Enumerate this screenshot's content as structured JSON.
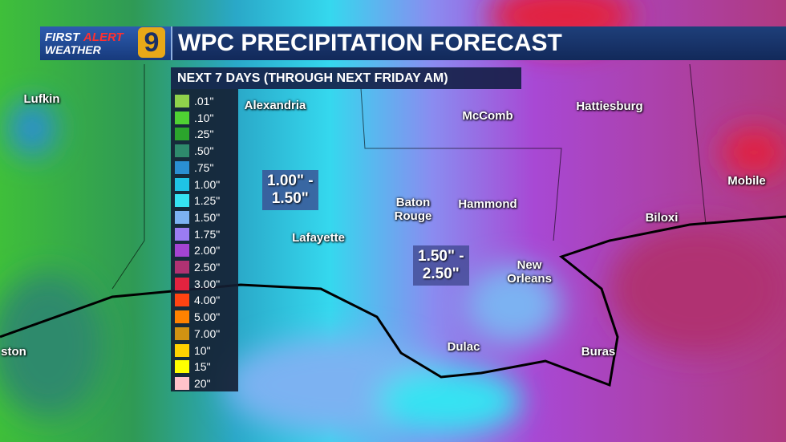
{
  "header": {
    "logo_top_left": "FIRST",
    "logo_top_right": "ALERT",
    "logo_bottom": "WEATHER",
    "logo_number": "9",
    "title": "WPC PRECIPITATION FORECAST",
    "subtitle": "NEXT 7 DAYS (THROUGH NEXT FRIDAY AM)"
  },
  "legend": [
    {
      "label": ".01\"",
      "color": "#8fd14b"
    },
    {
      "label": ".10\"",
      "color": "#4fd233"
    },
    {
      "label": ".25\"",
      "color": "#2ba52c"
    },
    {
      "label": ".50\"",
      "color": "#2e8a6c"
    },
    {
      "label": ".75\"",
      "color": "#2a8fd2"
    },
    {
      "label": "1.00\"",
      "color": "#1fc3e6"
    },
    {
      "label": "1.25\"",
      "color": "#35e3f2"
    },
    {
      "label": "1.50\"",
      "color": "#7cb2f2"
    },
    {
      "label": "1.75\"",
      "color": "#9b7cf2"
    },
    {
      "label": "2.00\"",
      "color": "#a444d2"
    },
    {
      "label": "2.50\"",
      "color": "#b03272"
    },
    {
      "label": "3.00\"",
      "color": "#e2233f"
    },
    {
      "label": "4.00\"",
      "color": "#ff4412"
    },
    {
      "label": "5.00\"",
      "color": "#ff8200"
    },
    {
      "label": "7.00\"",
      "color": "#d09212"
    },
    {
      "label": "10\"",
      "color": "#ffd200"
    },
    {
      "label": "15\"",
      "color": "#ffff00"
    },
    {
      "label": "20\"",
      "color": "#ffc2ca"
    }
  ],
  "cities": [
    "Lufkin",
    "Alexandria",
    "McComb",
    "Hattiesburg",
    "Mobile",
    "Baton Rouge",
    "Hammond",
    "Biloxi",
    "Lafayette",
    "New Orleans",
    "Dulac",
    "Buras",
    "ston"
  ],
  "annotations": [
    {
      "line1": "1.00\" -",
      "line2": "1.50\""
    },
    {
      "line1": "1.50\" -",
      "line2": "2.50\""
    }
  ]
}
